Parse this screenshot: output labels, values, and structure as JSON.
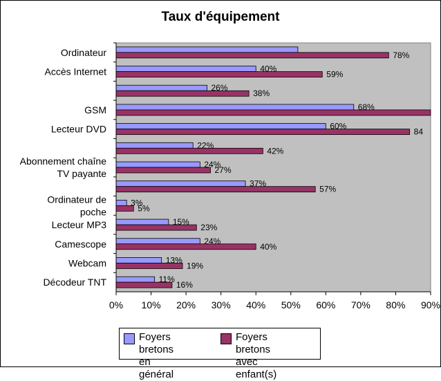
{
  "chart_data": {
    "type": "bar",
    "orientation": "horizontal",
    "title": "Taux d'équipement",
    "categories": [
      "Ordinateur",
      "Accès Internet",
      "",
      "GSM",
      "Lecteur DVD",
      "",
      "Abonnement chaîne TV payante",
      "",
      "Ordinateur de poche",
      "Lecteur MP3",
      "Camescope",
      "Webcam",
      "Décodeur TNT"
    ],
    "series": [
      {
        "name": "Foyers bretons en général",
        "color": "#9999ff",
        "values": [
          52,
          40,
          26,
          68,
          60,
          22,
          24,
          37,
          3,
          15,
          24,
          13,
          11
        ],
        "labels": [
          "",
          "40%",
          "26%",
          "68%",
          "60%",
          "22%",
          "24%",
          "37%",
          "3%",
          "15%",
          "24%",
          "13%",
          "11%"
        ]
      },
      {
        "name": "Foyers bretons avec enfant(s)",
        "color": "#993366",
        "values": [
          78,
          59,
          38,
          91,
          84,
          42,
          27,
          57,
          5,
          23,
          40,
          19,
          16
        ],
        "labels": [
          "78%",
          "59%",
          "38%",
          "",
          "84",
          "42%",
          "27%",
          "57%",
          "5%",
          "23%",
          "40%",
          "19%",
          "16%"
        ]
      }
    ],
    "xlim": [
      0,
      90
    ],
    "xticks": [
      "0%",
      "10%",
      "20%",
      "30%",
      "40%",
      "50%",
      "60%",
      "70%",
      "80%",
      "90%"
    ],
    "plot_background": "#c0c0c0",
    "gridlines": false,
    "legend": {
      "position": "bottom",
      "items": [
        "Foyers bretons\nen général",
        "Foyers bretons\navec enfant(s)"
      ]
    }
  }
}
